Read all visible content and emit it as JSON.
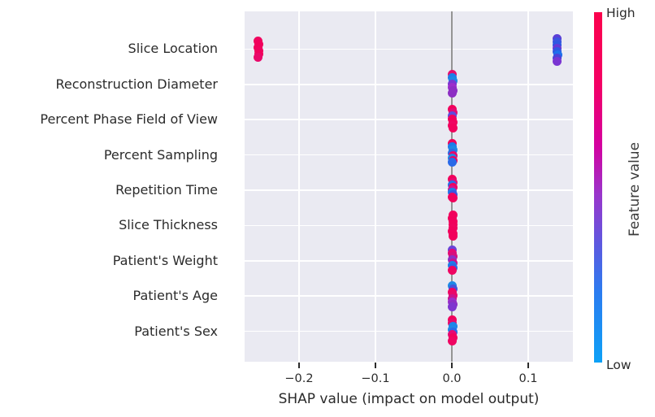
{
  "chart_data": {
    "type": "scatter",
    "subtype": "shap-summary-beeswarm",
    "title": "",
    "xlabel": "SHAP value (impact on model output)",
    "xlim": [
      -0.2713,
      0.1585
    ],
    "x_ticks": [
      {
        "v": -0.2,
        "label": "−0.2"
      },
      {
        "v": -0.1,
        "label": "−0.1"
      },
      {
        "v": 0.0,
        "label": "0.0"
      },
      {
        "v": 0.1,
        "label": "0.1"
      }
    ],
    "grid": true,
    "plot_bg": "#eaeaf2",
    "grid_color": "#ffffff",
    "zero_line_color": "#949494",
    "legend_position": "right-colorbar",
    "features": [
      {
        "name": "Slice Location",
        "dots": [
          [
            -0.254,
            -10,
            "#f0055f"
          ],
          [
            -0.253,
            -6,
            "#f1015c"
          ],
          [
            -0.2535,
            -2,
            "#f1015c"
          ],
          [
            -0.2525,
            2,
            "#ef045f"
          ],
          [
            -0.253,
            6,
            "#f1015c"
          ],
          [
            -0.2535,
            10,
            "#e9086a"
          ],
          [
            0.138,
            -13,
            "#5a3fd6"
          ],
          [
            0.1378,
            -9,
            "#3a55e0"
          ],
          [
            0.1382,
            -5,
            "#2e59e2"
          ],
          [
            0.138,
            -1,
            "#6639d6"
          ],
          [
            0.1376,
            3,
            "#2e59e2"
          ],
          [
            0.1383,
            7,
            "#1f70ec"
          ],
          [
            0.138,
            11,
            "#4b43d9"
          ],
          [
            0.1379,
            15,
            "#7a35d2"
          ]
        ]
      },
      {
        "name": "Reconstruction Diameter",
        "dots": [
          [
            0.001,
            -12,
            "#e60d6e"
          ],
          [
            0.0008,
            -8,
            "#1e7ee8"
          ],
          [
            0.0012,
            -4,
            "#1e88e5"
          ],
          [
            0.001,
            0,
            "#7a36d2"
          ],
          [
            0.0006,
            4,
            "#9c2ecb"
          ],
          [
            0.0012,
            8,
            "#8d2fc4"
          ],
          [
            0.001,
            11,
            "#8d2fc4"
          ]
        ]
      },
      {
        "name": "Percent Phase Field of View",
        "dots": [
          [
            0.0008,
            -13,
            "#f1015c"
          ],
          [
            0.0012,
            -9,
            "#e40a74"
          ],
          [
            0.001,
            -5,
            "#5e4bdc"
          ],
          [
            0.0006,
            -1,
            "#f1015c"
          ],
          [
            0.0012,
            3,
            "#f1015c"
          ],
          [
            0.0009,
            7,
            "#ef0562"
          ],
          [
            0.0011,
            10,
            "#f1015c"
          ]
        ]
      },
      {
        "name": "Percent Sampling",
        "dots": [
          [
            0.001,
            -14,
            "#f1015c"
          ],
          [
            0.0007,
            -10,
            "#1c7cea"
          ],
          [
            0.0012,
            -6,
            "#1e88e5"
          ],
          [
            0.0009,
            -2,
            "#2e6ae5"
          ],
          [
            0.0011,
            1,
            "#e8086a"
          ],
          [
            0.0008,
            4,
            "#1e88e5"
          ],
          [
            0.0012,
            7,
            "#f1015c"
          ],
          [
            0.001,
            9,
            "#2a6ae8"
          ]
        ]
      },
      {
        "name": "Repetition Time",
        "dots": [
          [
            0.0009,
            -14,
            "#f1015c"
          ],
          [
            0.0012,
            -10,
            "#e40a74"
          ],
          [
            0.0007,
            -7,
            "#2a6ae8"
          ],
          [
            0.0011,
            -4,
            "#f1015c"
          ],
          [
            0.001,
            -1,
            "#d01090"
          ],
          [
            0.0008,
            2,
            "#1e7eea"
          ],
          [
            0.0012,
            5,
            "#3b55e0"
          ],
          [
            0.0009,
            8,
            "#ef0562"
          ],
          [
            0.0011,
            9,
            "#f1015c"
          ]
        ]
      },
      {
        "name": "Slice Thickness",
        "dots": [
          [
            0.0012,
            -13,
            "#f1015c"
          ],
          [
            0.001,
            -9,
            "#f1015c"
          ],
          [
            0.0013,
            -5,
            "#f1015c"
          ],
          [
            0.0011,
            -1,
            "#f1015c"
          ],
          [
            0.0012,
            3,
            "#ef045f"
          ],
          [
            0.001,
            7,
            "#f1015c"
          ],
          [
            0.0013,
            10,
            "#f1015c"
          ],
          [
            0.0011,
            13,
            "#f1015c"
          ]
        ]
      },
      {
        "name": "Patient's Weight",
        "dots": [
          [
            0.001,
            -13,
            "#6a43d8"
          ],
          [
            0.0008,
            -9,
            "#e40a74"
          ],
          [
            0.0012,
            -5,
            "#d5107e"
          ],
          [
            0.0009,
            -1,
            "#8d2fc4"
          ],
          [
            0.0011,
            3,
            "#c9128e"
          ],
          [
            0.0007,
            6,
            "#1e7ee8"
          ],
          [
            0.0012,
            9,
            "#2a6ae8"
          ],
          [
            0.001,
            12,
            "#ef0562"
          ]
        ]
      },
      {
        "name": "Patient's Age",
        "dots": [
          [
            0.0009,
            -13,
            "#1e88e5"
          ],
          [
            0.0012,
            -9,
            "#4553da"
          ],
          [
            0.0008,
            -5,
            "#ef0562"
          ],
          [
            0.0011,
            -1,
            "#e8086a"
          ],
          [
            0.001,
            3,
            "#c9128e"
          ],
          [
            0.0007,
            7,
            "#9c2ecb"
          ],
          [
            0.0012,
            10,
            "#8d2fc4"
          ],
          [
            0.0009,
            13,
            "#7e36cf"
          ]
        ]
      },
      {
        "name": "Patient's Sex",
        "dots": [
          [
            0.001,
            -14,
            "#f1015c"
          ],
          [
            0.0008,
            -10,
            "#e8086a"
          ],
          [
            0.0012,
            -6,
            "#1c85ea"
          ],
          [
            0.0009,
            -2,
            "#1e88e5"
          ],
          [
            0.0011,
            1,
            "#2a6ae8"
          ],
          [
            0.0007,
            4,
            "#e40a74"
          ],
          [
            0.0012,
            8,
            "#f1015c"
          ],
          [
            0.001,
            12,
            "#ef0562"
          ]
        ]
      }
    ],
    "colorbar": {
      "title": "Feature value",
      "label_high": "High",
      "label_low": "Low",
      "gradient": [
        {
          "c": "#fb024c",
          "p": 0
        },
        {
          "c": "#f40063",
          "p": 20
        },
        {
          "c": "#d4009f",
          "p": 38
        },
        {
          "c": "#9a35cb",
          "p": 52
        },
        {
          "c": "#5e58df",
          "p": 66
        },
        {
          "c": "#2b7cf0",
          "p": 80
        },
        {
          "c": "#0da1f6",
          "p": 100
        }
      ]
    }
  }
}
